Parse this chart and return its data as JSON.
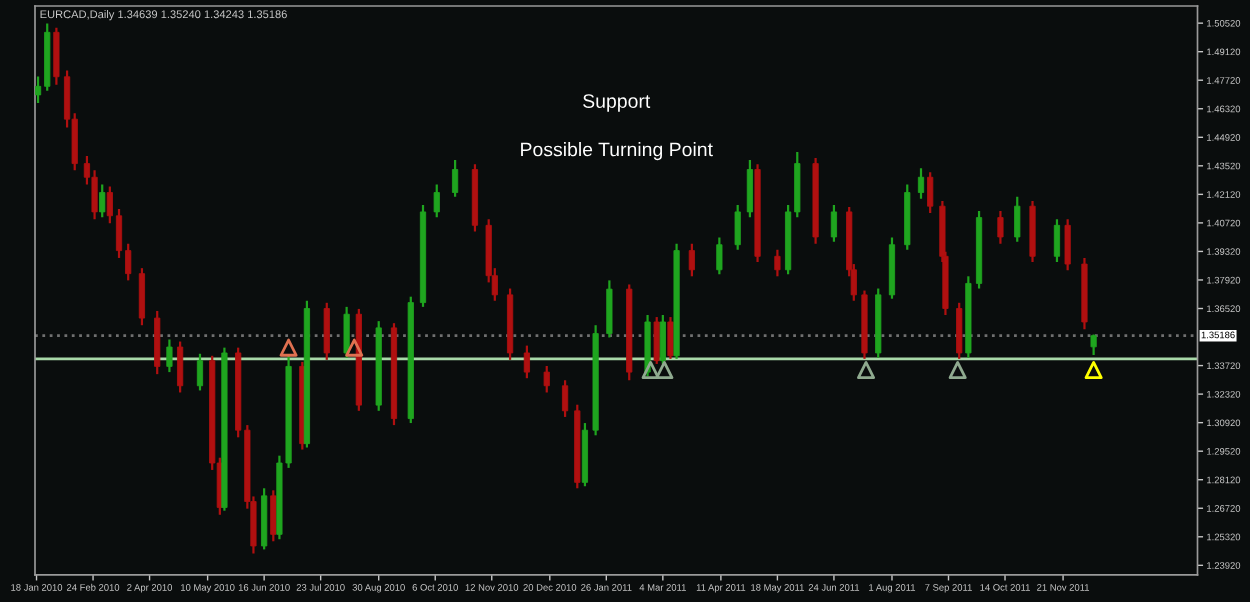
{
  "chart_data": {
    "type": "candlestick",
    "title": "EURCAD,Daily 1.34639 1.35240 1.34243 1.35186",
    "annotations": [
      "Support",
      "Possible Turning Point"
    ],
    "x": [
      "2010-01-19",
      "2010-01-25",
      "2010-01-31",
      "2010-02-07",
      "2010-02-12",
      "2010-02-20",
      "2010-02-25",
      "2010-03-02",
      "2010-03-07",
      "2010-03-13",
      "2010-03-19",
      "2010-03-28",
      "2010-04-07",
      "2010-04-15",
      "2010-04-22",
      "2010-05-05",
      "2010-05-13",
      "2010-05-18",
      "2010-05-21",
      "2010-05-30",
      "2010-06-05",
      "2010-06-09",
      "2010-06-16",
      "2010-06-22",
      "2010-06-26",
      "2010-07-02",
      "2010-07-11",
      "2010-07-14",
      "2010-07-27",
      "2010-08-09",
      "2010-08-17",
      "2010-08-30",
      "2010-09-09",
      "2010-09-20",
      "2010-09-28",
      "2010-10-07",
      "2010-10-19",
      "2010-11-01",
      "2010-11-10",
      "2010-11-14",
      "2010-11-24",
      "2010-12-05",
      "2010-12-18",
      "2010-12-30",
      "2011-01-07",
      "2011-01-12",
      "2011-01-19",
      "2011-01-28",
      "2011-02-10",
      "2011-02-22",
      "2011-02-28",
      "2011-03-04",
      "2011-03-09",
      "2011-03-13",
      "2011-03-23",
      "2011-04-10",
      "2011-04-22",
      "2011-04-30",
      "2011-05-05",
      "2011-05-18",
      "2011-05-25",
      "2011-05-31",
      "2011-06-12",
      "2011-06-24",
      "2011-07-04",
      "2011-07-07",
      "2011-07-14",
      "2011-07-23",
      "2011-08-01",
      "2011-08-11",
      "2011-08-20",
      "2011-08-26",
      "2011-09-03",
      "2011-09-05",
      "2011-09-14",
      "2011-09-20",
      "2011-09-27",
      "2011-10-11",
      "2011-10-22",
      "2011-11-01",
      "2011-11-17",
      "2011-11-24",
      "2011-12-05",
      "2011-12-11"
    ],
    "ohlc": [
      [
        1.47,
        1.479,
        1.466,
        1.4742
      ],
      [
        1.4742,
        1.505,
        1.472,
        1.5007
      ],
      [
        1.5007,
        1.503,
        1.475,
        1.4789
      ],
      [
        1.4789,
        1.482,
        1.454,
        1.4581
      ],
      [
        1.4581,
        1.461,
        1.433,
        1.4363
      ],
      [
        1.4363,
        1.44,
        1.426,
        1.4296
      ],
      [
        1.4296,
        1.433,
        1.409,
        1.4126
      ],
      [
        1.4126,
        1.426,
        1.41,
        1.4221
      ],
      [
        1.4221,
        1.425,
        1.407,
        1.4107
      ],
      [
        1.4107,
        1.414,
        1.39,
        1.3936
      ],
      [
        1.3936,
        1.397,
        1.379,
        1.3823
      ],
      [
        1.3823,
        1.385,
        1.357,
        1.3605
      ],
      [
        1.3605,
        1.364,
        1.333,
        1.3368
      ],
      [
        1.3368,
        1.35,
        1.334,
        1.3463
      ],
      [
        1.3463,
        1.349,
        1.324,
        1.3273
      ],
      [
        1.3273,
        1.343,
        1.325,
        1.3396
      ],
      [
        1.3396,
        1.342,
        1.286,
        1.2894
      ],
      [
        1.2894,
        1.292,
        1.264,
        1.2676
      ],
      [
        1.2676,
        1.346,
        1.266,
        1.3434
      ],
      [
        1.3434,
        1.346,
        1.302,
        1.3055
      ],
      [
        1.3055,
        1.308,
        1.267,
        1.2705
      ],
      [
        1.2705,
        1.273,
        1.245,
        1.2487
      ],
      [
        1.2487,
        1.277,
        1.247,
        1.2733
      ],
      [
        1.2733,
        1.276,
        1.251,
        1.2544
      ],
      [
        1.2544,
        1.293,
        1.252,
        1.2894
      ],
      [
        1.2894,
        1.342,
        1.287,
        1.3368
      ],
      [
        1.3368,
        1.339,
        1.296,
        1.2989
      ],
      [
        1.2989,
        1.369,
        1.297,
        1.3652
      ],
      [
        1.3652,
        1.368,
        1.34,
        1.3434
      ],
      [
        1.3434,
        1.366,
        1.341,
        1.3624
      ],
      [
        1.3624,
        1.365,
        1.315,
        1.3178
      ],
      [
        1.3178,
        1.359,
        1.315,
        1.3557
      ],
      [
        1.3557,
        1.358,
        1.308,
        1.3112
      ],
      [
        1.3112,
        1.371,
        1.309,
        1.3681
      ],
      [
        1.3681,
        1.416,
        1.366,
        1.4126
      ],
      [
        1.4126,
        1.426,
        1.41,
        1.4221
      ],
      [
        1.4221,
        1.438,
        1.42,
        1.4334
      ],
      [
        1.4334,
        1.436,
        1.403,
        1.406
      ],
      [
        1.406,
        1.409,
        1.378,
        1.3813
      ],
      [
        1.3813,
        1.385,
        1.369,
        1.3719
      ],
      [
        1.3719,
        1.375,
        1.34,
        1.3434
      ],
      [
        1.3434,
        1.347,
        1.331,
        1.334
      ],
      [
        1.334,
        1.337,
        1.324,
        1.3273
      ],
      [
        1.3273,
        1.33,
        1.312,
        1.315
      ],
      [
        1.315,
        1.318,
        1.277,
        1.2799
      ],
      [
        1.2799,
        1.309,
        1.278,
        1.3055
      ],
      [
        1.3055,
        1.357,
        1.303,
        1.3529
      ],
      [
        1.3529,
        1.379,
        1.351,
        1.3747
      ],
      [
        1.3747,
        1.377,
        1.33,
        1.334
      ],
      [
        1.334,
        1.362,
        1.332,
        1.3586
      ],
      [
        1.3586,
        1.361,
        1.338,
        1.3396
      ],
      [
        1.3396,
        1.362,
        1.338,
        1.3586
      ],
      [
        1.3586,
        1.361,
        1.3405,
        1.342
      ],
      [
        1.342,
        1.397,
        1.3405,
        1.3936
      ],
      [
        1.3936,
        1.397,
        1.381,
        1.3842
      ],
      [
        1.3842,
        1.4,
        1.382,
        1.3965
      ],
      [
        1.3965,
        1.416,
        1.394,
        1.4126
      ],
      [
        1.4126,
        1.438,
        1.41,
        1.4334
      ],
      [
        1.4334,
        1.436,
        1.388,
        1.3908
      ],
      [
        1.3908,
        1.394,
        1.381,
        1.3842
      ],
      [
        1.3842,
        1.416,
        1.382,
        1.4126
      ],
      [
        1.4126,
        1.442,
        1.41,
        1.4363
      ],
      [
        1.4363,
        1.439,
        1.397,
        1.4003
      ],
      [
        1.4003,
        1.416,
        1.398,
        1.4126
      ],
      [
        1.4126,
        1.415,
        1.381,
        1.3842
      ],
      [
        1.3842,
        1.387,
        1.369,
        1.3719
      ],
      [
        1.3719,
        1.374,
        1.3405,
        1.3434
      ],
      [
        1.3434,
        1.375,
        1.341,
        1.3719
      ],
      [
        1.3719,
        1.4,
        1.37,
        1.3965
      ],
      [
        1.3965,
        1.426,
        1.394,
        1.4221
      ],
      [
        1.4221,
        1.434,
        1.419,
        1.4296
      ],
      [
        1.4296,
        1.432,
        1.412,
        1.4154
      ],
      [
        1.4154,
        1.418,
        1.388,
        1.3908
      ],
      [
        1.3908,
        1.393,
        1.362,
        1.3652
      ],
      [
        1.3652,
        1.368,
        1.3405,
        1.3434
      ],
      [
        1.3434,
        1.381,
        1.341,
        1.3775
      ],
      [
        1.3775,
        1.413,
        1.375,
        1.4098
      ],
      [
        1.4098,
        1.413,
        1.397,
        1.4003
      ],
      [
        1.4003,
        1.42,
        1.398,
        1.4154
      ],
      [
        1.4154,
        1.418,
        1.388,
        1.3908
      ],
      [
        1.3908,
        1.409,
        1.388,
        1.406
      ],
      [
        1.406,
        1.409,
        1.384,
        1.387
      ],
      [
        1.387,
        1.39,
        1.355,
        1.3586
      ],
      [
        1.34639,
        1.3524,
        1.34243,
        1.35186
      ]
    ],
    "colors": [
      "#1fa51f",
      "#1fa51f",
      "#b01010",
      "#b01010",
      "#b01010",
      "#b01010",
      "#b01010",
      "#1fa51f",
      "#b01010",
      "#b01010",
      "#b01010",
      "#b01010",
      "#b01010",
      "#1fa51f",
      "#b01010",
      "#1fa51f",
      "#b01010",
      "#b01010",
      "#1fa51f",
      "#b01010",
      "#b01010",
      "#b01010",
      "#1fa51f",
      "#b01010",
      "#1fa51f",
      "#1fa51f",
      "#b01010",
      "#1fa51f",
      "#b01010",
      "#1fa51f",
      "#b01010",
      "#1fa51f",
      "#b01010",
      "#1fa51f",
      "#1fa51f",
      "#1fa51f",
      "#1fa51f",
      "#b01010",
      "#b01010",
      "#b01010",
      "#b01010",
      "#b01010",
      "#b01010",
      "#b01010",
      "#b01010",
      "#1fa51f",
      "#1fa51f",
      "#1fa51f",
      "#b01010",
      "#1fa51f",
      "#b01010",
      "#1fa51f",
      "#b01010",
      "#1fa51f",
      "#b01010",
      "#1fa51f",
      "#1fa51f",
      "#1fa51f",
      "#b01010",
      "#b01010",
      "#1fa51f",
      "#1fa51f",
      "#b01010",
      "#1fa51f",
      "#b01010",
      "#b01010",
      "#b01010",
      "#1fa51f",
      "#1fa51f",
      "#1fa51f",
      "#1fa51f",
      "#b01010",
      "#b01010",
      "#b01010",
      "#b01010",
      "#1fa51f",
      "#1fa51f",
      "#b01010",
      "#1fa51f",
      "#b01010",
      "#1fa51f",
      "#b01010",
      "#b01010",
      "#1fa51f"
    ],
    "series": [
      {
        "type": "scatter",
        "marker": "triangle",
        "x": [
          "2010-07-02",
          "2010-08-14",
          "2011-02-24",
          "2011-03-05",
          "2011-07-15",
          "2011-09-13",
          "2011-12-11"
        ],
        "values": [
          1.346,
          1.346,
          1.335,
          1.335,
          1.335,
          1.335,
          1.335
        ],
        "colors": [
          "#e07050",
          "#e07050",
          "#8faa8f",
          "#8faa8f",
          "#8faa8f",
          "#8faa8f",
          "#ffff00"
        ]
      }
    ],
    "ref_lines": [
      {
        "axis": "y",
        "value": 1.3405,
        "color": "#a8d8a8",
        "line_style": "solid"
      },
      {
        "axis": "y",
        "value": 1.35186,
        "label": "1.35186",
        "color": "#707070",
        "line_style": "dotted"
      }
    ],
    "xlim": [
      "2010-01-17",
      "2012-02-17"
    ],
    "xticks": [
      {
        "value": "2010-01-18",
        "label": "18 Jan 2010"
      },
      {
        "value": "2010-02-24",
        "label": "24 Feb 2010"
      },
      {
        "value": "2010-04-02",
        "label": "2 Apr 2010"
      },
      {
        "value": "2010-05-10",
        "label": "10 May 2010"
      },
      {
        "value": "2010-06-16",
        "label": "16 Jun 2010"
      },
      {
        "value": "2010-07-23",
        "label": "23 Jul 2010"
      },
      {
        "value": "2010-08-30",
        "label": "30 Aug 2010"
      },
      {
        "value": "2010-10-06",
        "label": "6 Oct 2010"
      },
      {
        "value": "2010-11-12",
        "label": "12 Nov 2010"
      },
      {
        "value": "2010-12-20",
        "label": "20 Dec 2010"
      },
      {
        "value": "2011-01-26",
        "label": "26 Jan 2011"
      },
      {
        "value": "2011-03-04",
        "label": "4 Mar 2011"
      },
      {
        "value": "2011-04-11",
        "label": "11 Apr 2011"
      },
      {
        "value": "2011-05-18",
        "label": "18 May 2011"
      },
      {
        "value": "2011-06-24",
        "label": "24 Jun 2011"
      },
      {
        "value": "2011-08-01",
        "label": "1 Aug 2011"
      },
      {
        "value": "2011-09-07",
        "label": "7 Sep 2011"
      },
      {
        "value": "2011-10-14",
        "label": "14 Oct 2011"
      },
      {
        "value": "2011-11-21",
        "label": "21 Nov 2011"
      }
    ],
    "ylim": [
      1.2345,
      1.5136
    ],
    "yticks": [
      {
        "value": 1.2392,
        "label": "1.23920"
      },
      {
        "value": 1.2532,
        "label": "1.25320"
      },
      {
        "value": 1.2672,
        "label": "1.26720"
      },
      {
        "value": 1.2812,
        "label": "1.28120"
      },
      {
        "value": 1.2952,
        "label": "1.29520"
      },
      {
        "value": 1.3092,
        "label": "1.30920"
      },
      {
        "value": 1.3232,
        "label": "1.32320"
      },
      {
        "value": 1.3372,
        "label": "1.33720"
      },
      {
        "value": 1.3652,
        "label": "1.36520"
      },
      {
        "value": 1.3792,
        "label": "1.37920"
      },
      {
        "value": 1.3932,
        "label": "1.39320"
      },
      {
        "value": 1.4072,
        "label": "1.40720"
      },
      {
        "value": 1.4212,
        "label": "1.42120"
      },
      {
        "value": 1.4352,
        "label": "1.43520"
      },
      {
        "value": 1.4492,
        "label": "1.44920"
      },
      {
        "value": 1.4632,
        "label": "1.46320"
      },
      {
        "value": 1.4772,
        "label": "1.47720"
      },
      {
        "value": 1.4912,
        "label": "1.49120"
      },
      {
        "value": 1.5052,
        "label": "1.50520"
      }
    ],
    "grid": false
  }
}
